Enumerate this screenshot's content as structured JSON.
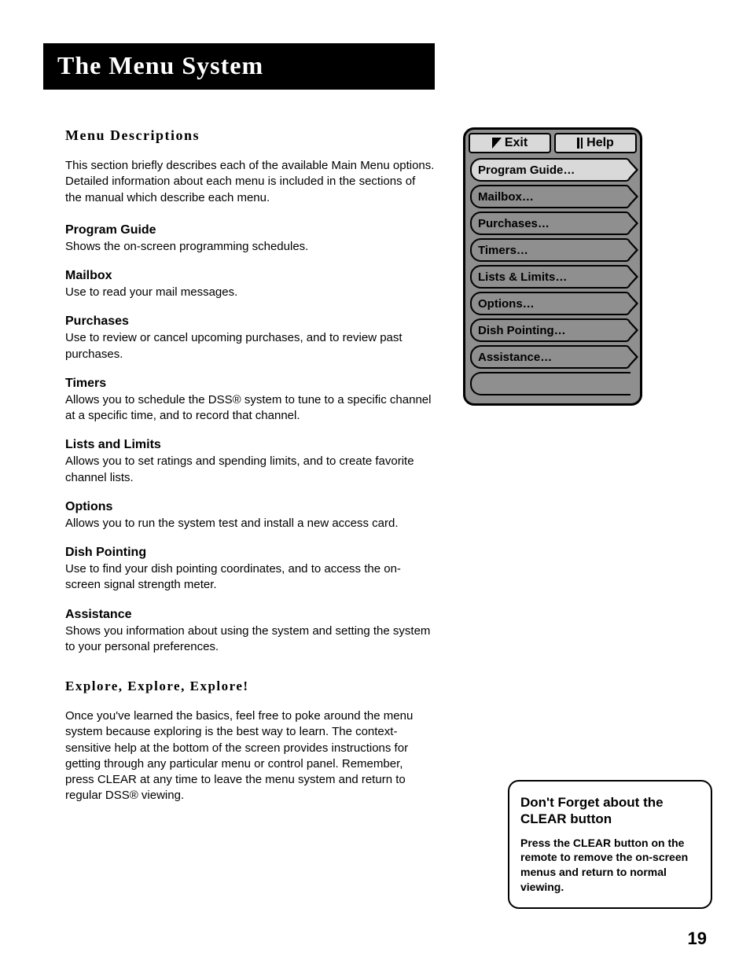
{
  "title": "The Menu System",
  "page_number": "19",
  "left": {
    "section_heading": "Menu Descriptions",
    "intro": "This section briefly describes each of the available Main Menu options. Detailed information about each menu is included in the sections of the manual which describe each menu.",
    "items": [
      {
        "title": "Program Guide",
        "desc": "Shows the on-screen programming schedules."
      },
      {
        "title": "Mailbox",
        "desc": "Use to read your mail messages."
      },
      {
        "title": "Purchases",
        "desc": "Use to review or cancel upcoming purchases, and to review past purchases."
      },
      {
        "title": "Timers",
        "desc": "Allows you to schedule the DSS® system to tune to a specific channel at a specific time, and to record that channel."
      },
      {
        "title": "Lists and Limits",
        "desc": "Allows you to set ratings and spending limits, and to create favorite channel lists."
      },
      {
        "title": "Options",
        "desc": "Allows you to run the system test and install a new access card."
      },
      {
        "title": "Dish Pointing",
        "desc": "Use to find your dish pointing coordinates, and to access the on-screen signal strength meter."
      },
      {
        "title": "Assistance",
        "desc": "Shows you information about using the system and setting the system to your personal preferences."
      }
    ],
    "explore_heading": "Explore, Explore, Explore!",
    "explore_body": "Once you've learned the basics, feel free to poke around the menu system because exploring is the best way to learn. The context-sensitive help at the bottom of the screen provides instructions for getting through any particular menu or control panel. Remember, press CLEAR at any time to leave the menu system and return to regular DSS® viewing."
  },
  "osd": {
    "top_buttons": [
      "Exit",
      "Help"
    ],
    "rows": [
      {
        "label": "Program Guide…",
        "bg": "#d9d9d9",
        "arrow_fill": "#d9d9d9"
      },
      {
        "label": "Mailbox…",
        "bg": "#8f8f8f",
        "arrow_fill": "#8f8f8f"
      },
      {
        "label": "Purchases…",
        "bg": "#8f8f8f",
        "arrow_fill": "#8f8f8f"
      },
      {
        "label": "Timers…",
        "bg": "#8f8f8f",
        "arrow_fill": "#8f8f8f"
      },
      {
        "label": "Lists & Limits…",
        "bg": "#8f8f8f",
        "arrow_fill": "#8f8f8f"
      },
      {
        "label": "Options…",
        "bg": "#8f8f8f",
        "arrow_fill": "#8f8f8f"
      },
      {
        "label": "Dish Pointing…",
        "bg": "#8f8f8f",
        "arrow_fill": "#8f8f8f"
      },
      {
        "label": "Assistance…",
        "bg": "#8f8f8f",
        "arrow_fill": "#8f8f8f"
      }
    ]
  },
  "tip": {
    "title": "Don't Forget about the CLEAR button",
    "body": "Press the CLEAR button on the remote to remove the on-screen menus and return to normal viewing."
  },
  "colors": {
    "page_bg": "#ffffff",
    "title_bg": "#000000",
    "title_fg": "#ffffff",
    "osd_bg": "#8f8f8f",
    "osd_highlight": "#d9d9d9",
    "border": "#000000"
  }
}
